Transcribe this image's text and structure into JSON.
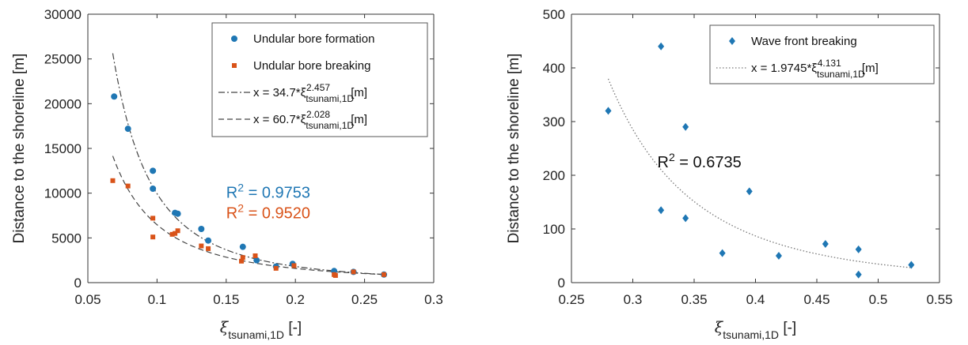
{
  "chart_data": [
    {
      "type": "scatter",
      "ylabel": "Distance to the shoreline [m]",
      "xlabel": "ξ",
      "xlabel_sub": "tsunami,1D",
      "xlabel_unit": " [-]",
      "xlim": [
        0.05,
        0.3
      ],
      "ylim": [
        0,
        30000
      ],
      "xticks": [
        0.05,
        0.1,
        0.15,
        0.2,
        0.25,
        0.3
      ],
      "xtick_labels": [
        "0.05",
        "0.1",
        "0.15",
        "0.2",
        "0.25",
        "0.3"
      ],
      "yticks": [
        0,
        5000,
        10000,
        15000,
        20000,
        25000,
        30000
      ],
      "ytick_labels": [
        "0",
        "5000",
        "10000",
        "15000",
        "20000",
        "25000",
        "30000"
      ],
      "legend_position": "top-right",
      "series": [
        {
          "name": "Undular bore formation",
          "marker": "circle",
          "color": "#1f77b4",
          "x": [
            0.069,
            0.079,
            0.097,
            0.097,
            0.113,
            0.115,
            0.132,
            0.137,
            0.162,
            0.172,
            0.186,
            0.198,
            0.228,
            0.242,
            0.264
          ],
          "y": [
            20800,
            17200,
            12500,
            10500,
            7800,
            7700,
            6000,
            4700,
            4000,
            2500,
            1800,
            2100,
            1300,
            1200,
            900
          ]
        },
        {
          "name": "Undular bore breaking",
          "marker": "square",
          "color": "#d95319",
          "x": [
            0.068,
            0.079,
            0.097,
            0.097,
            0.111,
            0.113,
            0.115,
            0.132,
            0.137,
            0.161,
            0.162,
            0.171,
            0.186,
            0.199,
            0.228,
            0.229,
            0.242,
            0.264
          ],
          "y": [
            11400,
            10800,
            7200,
            5100,
            5400,
            5500,
            5800,
            4100,
            3800,
            2400,
            2800,
            3000,
            1600,
            1900,
            900,
            800,
            1200,
            900
          ]
        }
      ],
      "fits": [
        {
          "label_prefix": "x = 34.7*ξ",
          "label_sub": "tsunami,1D",
          "label_sup": "-2.457",
          "label_suffix": " [m]",
          "a": 34.7,
          "b": -2.457,
          "x_range": [
            0.068,
            0.265
          ],
          "style": "dashdot"
        },
        {
          "label_prefix": "x = 60.7*ξ",
          "label_sub": "tsunami,1D",
          "label_sup": "-2.028",
          "label_suffix": " [m]",
          "a": 60.7,
          "b": -2.028,
          "x_range": [
            0.068,
            0.265
          ],
          "style": "dashed"
        }
      ],
      "annotations": [
        {
          "prefix": "R",
          "sup": "2",
          "value": " = 0.9753",
          "color": "#1f77b4",
          "x": 0.15,
          "y": 9500
        },
        {
          "prefix": "R",
          "sup": "2",
          "value": " = 0.9520",
          "color": "#d95319",
          "x": 0.15,
          "y": 7200
        }
      ]
    },
    {
      "type": "scatter",
      "ylabel": "Distance to the shoreline [m]",
      "xlabel": "ξ",
      "xlabel_sub": "tsunami,1D",
      "xlabel_unit": " [-]",
      "xlim": [
        0.25,
        0.55
      ],
      "ylim": [
        0,
        500
      ],
      "xticks": [
        0.25,
        0.3,
        0.35,
        0.4,
        0.45,
        0.5,
        0.55
      ],
      "xtick_labels": [
        "0.25",
        "0.3",
        "0.35",
        "0.4",
        "0.45",
        "0.5",
        "0.55"
      ],
      "yticks": [
        0,
        100,
        200,
        300,
        400,
        500
      ],
      "ytick_labels": [
        "0",
        "100",
        "200",
        "300",
        "400",
        "500"
      ],
      "legend_position": "top-right",
      "series": [
        {
          "name": "Wave front breaking",
          "marker": "diamond",
          "color": "#1f77b4",
          "x": [
            0.28,
            0.323,
            0.323,
            0.343,
            0.343,
            0.373,
            0.395,
            0.419,
            0.457,
            0.484,
            0.484,
            0.527
          ],
          "y": [
            320,
            440,
            135,
            290,
            120,
            55,
            170,
            50,
            72,
            62,
            15,
            33
          ]
        }
      ],
      "fits": [
        {
          "label_prefix": "x = 1.9745*ξ",
          "label_sub": "tsunami,1D",
          "label_sup": "-4.131",
          "label_suffix": " [m]",
          "a": 1.9745,
          "b": -4.131,
          "x_range": [
            0.28,
            0.527
          ],
          "style": "dotted"
        }
      ],
      "annotations": [
        {
          "prefix": "R",
          "sup": "2",
          "value": " = 0.6735",
          "color": "#111111",
          "x": 0.32,
          "y": 215
        }
      ]
    }
  ]
}
